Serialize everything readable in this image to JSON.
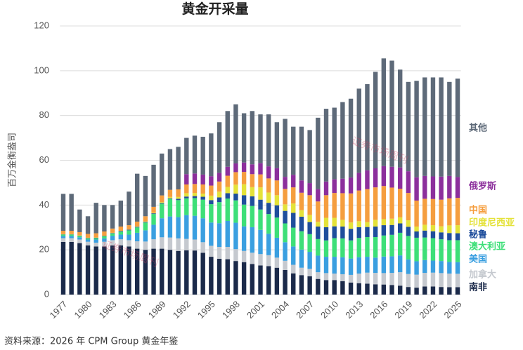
{
  "chart_data": {
    "type": "stacked_bar",
    "title": "黄金开采量",
    "y_label": "百万金衡盎司",
    "source": "资料来源：2026 年 CPM Group 黄金年鉴",
    "watermark": "证券市场周刊",
    "x": [
      1977,
      1978,
      1979,
      1980,
      1981,
      1982,
      1983,
      1984,
      1985,
      1986,
      1987,
      1988,
      1989,
      1990,
      1991,
      1992,
      1993,
      1994,
      1995,
      1996,
      1997,
      1998,
      1999,
      2000,
      2001,
      2002,
      2003,
      2004,
      2005,
      2006,
      2007,
      2008,
      2009,
      2010,
      2011,
      2012,
      2013,
      2014,
      2015,
      2016,
      2017,
      2018,
      2019,
      2020,
      2021,
      2022,
      2023,
      2024,
      2025
    ],
    "xlim": [
      1976.6,
      2025.4
    ],
    "xticks": [
      1977,
      1980,
      1983,
      1986,
      1989,
      1992,
      1995,
      1998,
      2001,
      2004,
      2007,
      2010,
      2013,
      2016,
      2019,
      2022,
      2025
    ],
    "ylim": [
      0,
      120
    ],
    "yticks": [
      0,
      20,
      40,
      60,
      80,
      100,
      120
    ],
    "grid": true,
    "series": [
      {
        "name": "南非",
        "color": "#1b2a4a",
        "values": [
          23.5,
          23.5,
          23,
          22,
          21.5,
          21.5,
          22,
          22,
          21.5,
          20.5,
          20,
          20.5,
          20.5,
          20,
          19.5,
          19.8,
          19.7,
          18.7,
          16.9,
          16,
          15.8,
          15,
          14.5,
          13.7,
          13,
          12.7,
          12,
          11,
          9.5,
          8.7,
          8.2,
          7,
          6.5,
          6.5,
          6,
          5.4,
          5.1,
          4.9,
          4.6,
          4.5,
          4.3,
          4,
          3.4,
          3.1,
          3.6,
          3.6,
          3.4,
          3.3,
          3.3
        ]
      },
      {
        "name": "加拿大",
        "color": "#c5c9cf",
        "values": [
          1.7,
          1.7,
          1.6,
          1.6,
          1.7,
          2.1,
          2.3,
          2.7,
          2.8,
          3.3,
          3.7,
          4.2,
          5.1,
          5.5,
          5.6,
          5.1,
          4.9,
          4.7,
          4.9,
          5.3,
          5.5,
          5.3,
          5.0,
          5.0,
          5.1,
          4.9,
          4.5,
          4.1,
          3.8,
          3.3,
          3.3,
          3.0,
          3.1,
          2.9,
          3.1,
          3.4,
          4.3,
          4.9,
          5.1,
          5.1,
          5.4,
          6.0,
          5.8,
          5.8,
          6.1,
          6.2,
          6.2,
          6.1,
          6.0
        ]
      },
      {
        "name": "美国",
        "color": "#3a9fe0",
        "values": [
          1.0,
          1.0,
          1.0,
          1.0,
          1.4,
          1.5,
          2.0,
          2.1,
          2.5,
          3.8,
          5.0,
          6.5,
          8.5,
          9.4,
          9.5,
          10.6,
          10.6,
          10.7,
          10.4,
          10.6,
          11.6,
          11.8,
          11.0,
          11.4,
          10.8,
          9.6,
          8.9,
          8.3,
          8.2,
          8.1,
          7.6,
          7.4,
          7.3,
          7.5,
          7.6,
          7.3,
          7.3,
          7.1,
          6.8,
          7.4,
          7.4,
          7.5,
          6.5,
          6.0,
          5.7,
          5.4,
          5.4,
          5.2,
          5.2
        ]
      },
      {
        "name": "澳大利亚",
        "color": "#3ddf78",
        "values": [
          0.6,
          0.6,
          0.6,
          0.5,
          0.6,
          0.9,
          1.0,
          1.3,
          1.9,
          2.4,
          3.5,
          4.8,
          6.5,
          7.8,
          7.6,
          7.5,
          7.9,
          8.3,
          8.2,
          9.4,
          10.0,
          10.0,
          9.7,
          9.5,
          9.1,
          8.8,
          9.0,
          8.4,
          8.4,
          8.2,
          7.9,
          7.4,
          7.3,
          8.3,
          8.4,
          8.1,
          8.6,
          8.8,
          9.2,
          9.4,
          9.6,
          10.1,
          10.5,
          10.5,
          10.1,
          10.0,
          9.7,
          9.7,
          9.8
        ]
      },
      {
        "name": "秘鲁",
        "color": "#1f4e9c",
        "values": [
          0.1,
          0.1,
          0.1,
          0.2,
          0.2,
          0.2,
          0.2,
          0.3,
          0.3,
          0.3,
          0.3,
          0.3,
          0.3,
          0.3,
          0.6,
          0.8,
          0.9,
          1.3,
          1.8,
          2.1,
          2.4,
          3.0,
          4.2,
          4.3,
          4.4,
          5.0,
          5.5,
          5.6,
          6.6,
          6.5,
          5.4,
          5.6,
          5.9,
          5.3,
          5.3,
          5.2,
          4.8,
          4.5,
          4.7,
          4.6,
          4.4,
          4.2,
          4.1,
          2.8,
          3.1,
          3.1,
          3.1,
          3.2,
          3.1
        ]
      },
      {
        "name": "印度尼西亚",
        "color": "#e4e23a",
        "values": [
          0.1,
          0.1,
          0.1,
          0.1,
          0.1,
          0.1,
          0.1,
          0.1,
          0.1,
          0.2,
          0.2,
          0.3,
          0.4,
          0.6,
          0.8,
          1.5,
          1.4,
          1.4,
          2.0,
          2.6,
          2.8,
          4.0,
          4.9,
          4.1,
          5.5,
          4.6,
          4.5,
          2.9,
          4.2,
          2.9,
          3.2,
          2.1,
          4.2,
          3.8,
          3.0,
          2.8,
          2.7,
          2.2,
          3.0,
          2.7,
          2.8,
          2.7,
          2.9,
          2.2,
          2.6,
          2.7,
          2.7,
          3.4,
          3.6
        ]
      },
      {
        "name": "中国",
        "color": "#f59e3f",
        "values": [
          1.5,
          1.5,
          1.5,
          1.7,
          1.9,
          1.9,
          1.9,
          1.9,
          1.9,
          2.1,
          2.3,
          2.6,
          3.0,
          3.2,
          3.4,
          3.9,
          4.0,
          4.1,
          4.5,
          4.5,
          5.0,
          5.6,
          5.5,
          5.8,
          5.8,
          6.3,
          6.6,
          6.9,
          7.2,
          7.8,
          8.8,
          9.1,
          10.1,
          11.1,
          11.9,
          13.0,
          13.7,
          14.7,
          14.5,
          14.8,
          13.9,
          12.8,
          12.2,
          11.6,
          11.6,
          11.7,
          11.9,
          12.1,
          12.2
        ]
      },
      {
        "name": "俄罗斯",
        "color": "#8c2f9c",
        "values": [
          0,
          0,
          0,
          0,
          0,
          0,
          0,
          0,
          0,
          0,
          0,
          0,
          0,
          0,
          0,
          4.6,
          4.7,
          4.4,
          4.2,
          3.9,
          4.0,
          3.9,
          4.2,
          4.4,
          5.0,
          5.4,
          5.5,
          5.4,
          5.6,
          5.5,
          5.4,
          5.5,
          6.1,
          6.1,
          6.5,
          7.1,
          7.9,
          8.4,
          8.5,
          8.9,
          9.3,
          9.5,
          9.7,
          10.4,
          10.2,
          10.1,
          10.3,
          10.0,
          9.3
        ]
      },
      {
        "name": "其他",
        "color": "#5e6a79",
        "values": [
          16.5,
          16.5,
          10.1,
          7.9,
          13.6,
          11.8,
          10.5,
          11.6,
          15.0,
          21.4,
          18.0,
          18.8,
          18.7,
          18.2,
          19.0,
          16.2,
          16.9,
          16.9,
          19.1,
          22.6,
          24.9,
          26.4,
          22.0,
          23.8,
          21.8,
          23.2,
          20.5,
          25.9,
          21.5,
          24.0,
          23.7,
          31.9,
          32.5,
          32.0,
          34.2,
          35.2,
          37.6,
          38.5,
          43.1,
          48.1,
          47.4,
          43.7,
          39.9,
          43.1,
          44.0,
          44.2,
          44.3,
          42.0,
          44.0
        ]
      }
    ]
  }
}
